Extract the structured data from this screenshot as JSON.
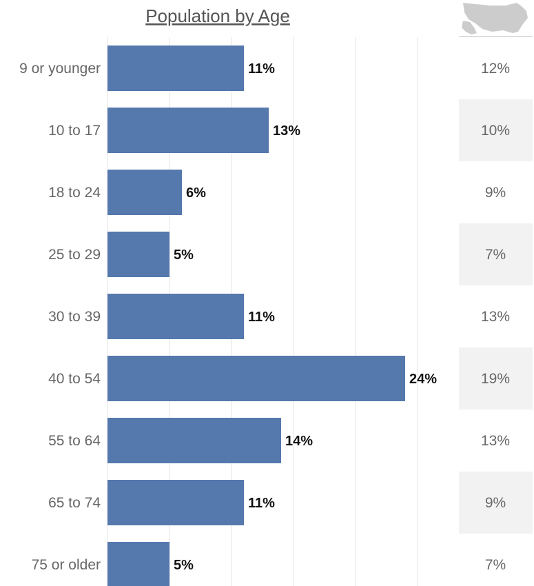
{
  "chart_data": {
    "type": "bar",
    "orientation": "horizontal",
    "title": "Population by Age",
    "categories": [
      "9 or younger",
      "10 to 17",
      "18 to 24",
      "25 to 29",
      "30 to 39",
      "40 to 54",
      "55 to 64",
      "65 to 74",
      "75 or older"
    ],
    "values": [
      11,
      13,
      6,
      5,
      11,
      24,
      14,
      11,
      5
    ],
    "value_labels": [
      "11%",
      "13%",
      "6%",
      "5%",
      "11%",
      "24%",
      "14%",
      "11%",
      "5%"
    ],
    "unit": "%",
    "xlim": [
      0,
      25
    ],
    "grid": true,
    "comparison": {
      "icon": "us-map-icon",
      "values": [
        12,
        10,
        9,
        7,
        13,
        19,
        13,
        9,
        7
      ],
      "labels": [
        "12%",
        "10%",
        "9%",
        "7%",
        "13%",
        "19%",
        "13%",
        "9%",
        "7%"
      ]
    }
  },
  "colors": {
    "bar": "#5578ad",
    "grid": "#e4e4e4",
    "stripe": "#f2f2f2",
    "map": "#cccccc"
  }
}
